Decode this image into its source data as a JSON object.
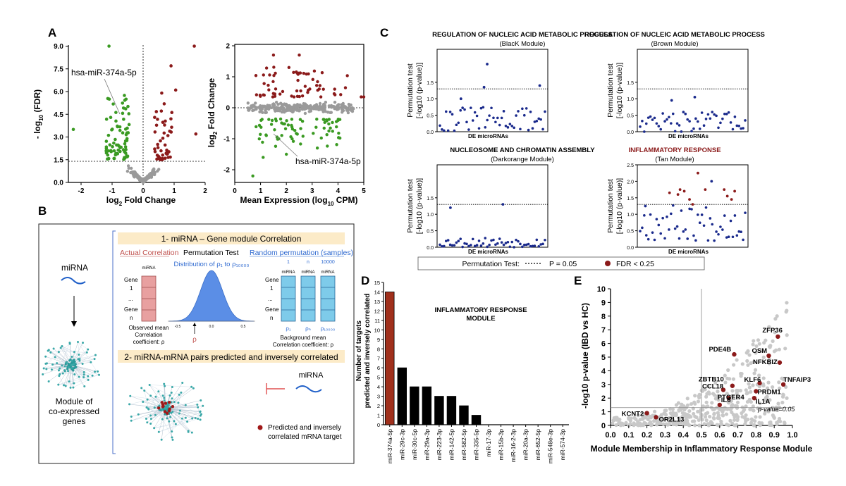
{
  "panels": {
    "A": "A",
    "B": "B",
    "C": "C",
    "D": "D",
    "E": "E"
  },
  "colors": {
    "up": "#8b1a1a",
    "down": "#3a9a22",
    "ns": "#9a9a9a",
    "blue_dot": "#1a2a8c",
    "sig_dot": "#8b1a1a",
    "bar_highlight": "#a0301c",
    "bar": "#000000",
    "light_blue": "#5b8ee6",
    "pink": "#e8a0a0",
    "cyan_box": "#7ecbea",
    "banner": "#fcebc8",
    "grey_point": "#c8c8c8"
  },
  "volcano": {
    "ylabel_pre": "- log",
    "ylabel_sub": "10",
    "ylabel_post": " (FDR)",
    "xlabel_pre": "log",
    "xlabel_sub": "2",
    "xlabel_post": " Fold Change",
    "annotation": "hsa-miR-374a-5p",
    "xticks": [
      "-2",
      "-1",
      "0",
      "1",
      "2"
    ],
    "yticks": [
      "9.0",
      "7.5",
      "6.0",
      "4.5",
      "3.0",
      "1.5",
      "0.0"
    ]
  },
  "ma": {
    "ylabel_pre": "log",
    "ylabel_sub": "2",
    "ylabel_post": " Fold Change",
    "xlabel_pre": "Mean Expression (log",
    "xlabel_sub": "10",
    "xlabel_post": " CPM)",
    "annotation": "hsa-miR-374a-5p",
    "xticks": [
      "0",
      "1",
      "2",
      "3",
      "4",
      "5"
    ],
    "yticks": [
      "2",
      "1",
      "0",
      "-1",
      "-2"
    ]
  },
  "schematic": {
    "title1": "1- miRNA – Gene module Correlation",
    "title2": "2- miRNA-mRNA pairs predicted and inversely correlated",
    "actual": "Actual Correlation",
    "perm": "Permutation Test",
    "random": "Random permutation (samples)",
    "mirna": "miRNA",
    "gene": "Gene",
    "g1": "1",
    "dots": "...",
    "gn": "n",
    "dist": "Distribution of ρ₁ to ρ₁₀₀₀₀",
    "rho": "ρ",
    "obs1": "Observed mean",
    "obs2": "Correlation",
    "obs3": "coefficient: ρ",
    "bg1": "Background mean",
    "bg2": "Correlation coefficient: ρ",
    "rand_heads": [
      "1",
      "n",
      "10000"
    ],
    "rand_rho": [
      "ρ₁",
      "ρₙ",
      "ρ₁₀₀₀₀"
    ],
    "axis_lo": "-0.5",
    "axis_mid": "0.0",
    "axis_hi": "0.5",
    "module1": "Module of",
    "module2": "co-expressed",
    "module3": "genes",
    "legend1": "Predicted and inversely",
    "legend2": "correlated mRNA target"
  },
  "enrichment": {
    "ylabel1": "Permutation test",
    "ylabel2": "[-log10 (p-value)]",
    "xlabel": "DE microRNAs",
    "yticks": [
      "1.5",
      "1.0",
      "0.5",
      "0.0"
    ],
    "plots": [
      {
        "title": "REGULATION OF NUCLEIC ACID METABOLIC PROCESS",
        "module": "(BlacK Module)"
      },
      {
        "title": "REGULATION OF NUCLEIC ACID METABOLIC PROCESS",
        "module": "(Brown Module)"
      },
      {
        "title": "NUCLEOSOME AND CHROMATIN ASSEMBLY",
        "module": "(Darkorange Module)"
      },
      {
        "title": "INFLAMMATORY RESPONSE",
        "module": "(Tan Module)"
      }
    ],
    "legend_title": "Permutation Test:",
    "legend_p": "P = 0.05",
    "legend_fdr": "FDR < 0.25"
  },
  "chart_data": [
    {
      "type": "bar",
      "title": "INFLAMMATORY RESPONSE MODULE",
      "title_line1": "INFLAMMATORY RESPONSE",
      "title_line2": "MODULE",
      "ylabel1": "Number of targets",
      "ylabel2": "predicted and inversely correlated",
      "categories": [
        "miR-374a-5p",
        "miR-29c-3p",
        "miR-30c-5p",
        "miR-29a-3p",
        "miR-223-3p",
        "miR-142-5p",
        "miR-582-5p",
        "miR-335-5p",
        "miR-17-3p",
        "miR-15b-3p",
        "miR-16-2-3p",
        "miR-20a-3p",
        "miR-652-5p",
        "miR-548e-3p",
        "miR-574-3p"
      ],
      "values": [
        14,
        6,
        4,
        4,
        3,
        3,
        2,
        1,
        0,
        0,
        0,
        0,
        0,
        0,
        0
      ],
      "ylim": [
        0,
        15
      ],
      "yticks": [
        "0",
        "1",
        "2",
        "3",
        "4",
        "5",
        "6",
        "7",
        "8",
        "9",
        "10",
        "11",
        "12",
        "13",
        "14",
        "15"
      ]
    },
    {
      "type": "scatter",
      "xlabel": "Module Membership in Inflammatory Response Module",
      "ylabel": "-log10 p-value (IBD vs HC)",
      "xlim": [
        0.0,
        1.0
      ],
      "ylim": [
        0,
        10
      ],
      "xticks": [
        "0.0",
        "0.1",
        "0.2",
        "0.3",
        "0.4",
        "0.5",
        "0.6",
        "0.7",
        "0.8",
        "0.9",
        "1.0"
      ],
      "yticks": [
        "0",
        "1",
        "2",
        "3",
        "4",
        "5",
        "6",
        "7",
        "8",
        "9",
        "10"
      ],
      "threshold_label": "p-value=0.05",
      "highlighted": [
        {
          "label": "ZFP36",
          "x": 0.92,
          "y": 6.5
        },
        {
          "label": "PDE4B",
          "x": 0.68,
          "y": 5.2
        },
        {
          "label": "OSM",
          "x": 0.87,
          "y": 5.1
        },
        {
          "label": "NFKBIZ",
          "x": 0.93,
          "y": 4.6
        },
        {
          "label": "TNFAIP3",
          "x": 0.95,
          "y": 3.0
        },
        {
          "label": "KLF6",
          "x": 0.82,
          "y": 3.1
        },
        {
          "label": "ZBTB10",
          "x": 0.67,
          "y": 2.9
        },
        {
          "label": "CCL18",
          "x": 0.62,
          "y": 2.6
        },
        {
          "label": "PRDM1",
          "x": 0.8,
          "y": 2.5
        },
        {
          "label": "IL1A",
          "x": 0.79,
          "y": 2.0
        },
        {
          "label": "PTGER4",
          "x": 0.65,
          "y": 2.0
        },
        {
          "label": "IL6",
          "x": 0.6,
          "y": 1.5
        },
        {
          "label": "KCNT2",
          "x": 0.2,
          "y": 0.9
        },
        {
          "label": "OR2L13",
          "x": 0.25,
          "y": 0.6
        }
      ]
    }
  ]
}
